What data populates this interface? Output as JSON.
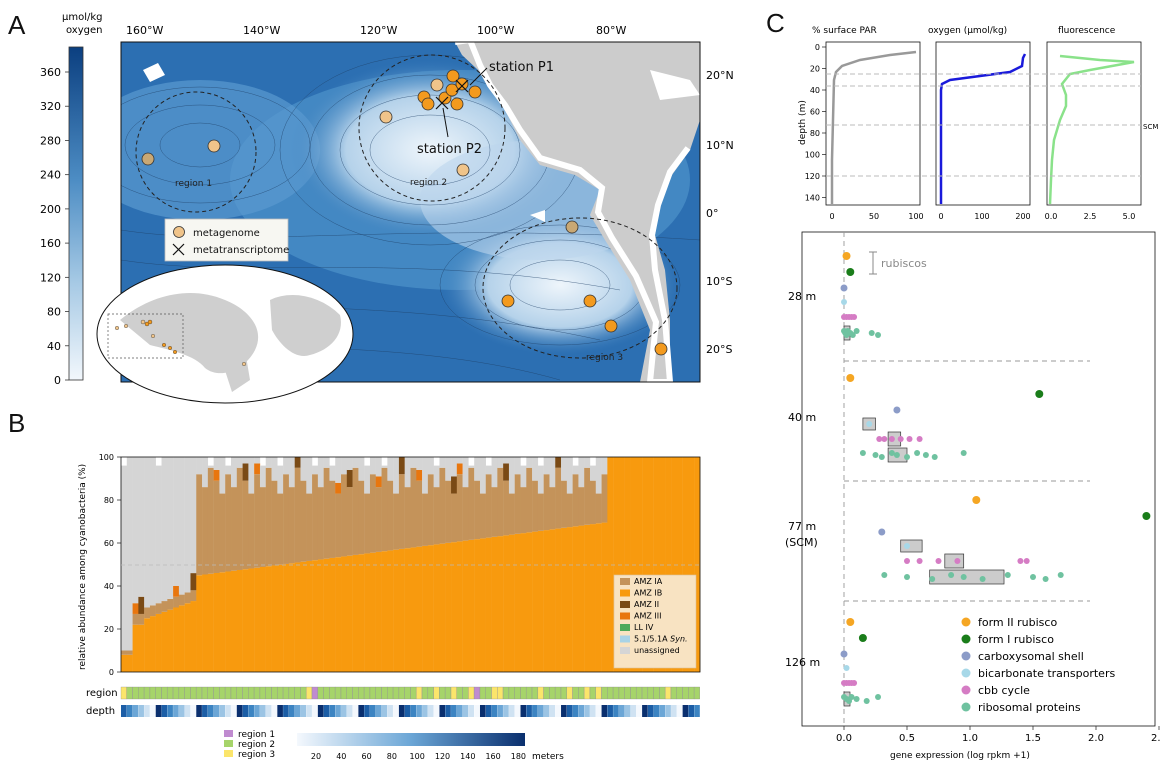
{
  "panels": {
    "a": "A",
    "b": "B",
    "c": "C"
  },
  "map": {
    "colorbar_title_line1": "μmol/kg",
    "colorbar_title_line2": "oxygen",
    "colorbar_ticks": [
      "0",
      "40",
      "80",
      "120",
      "160",
      "200",
      "240",
      "280",
      "320",
      "360"
    ],
    "lon_labels": [
      "160°W",
      "140°W",
      "120°W",
      "100°W",
      "80°W"
    ],
    "lat_labels": [
      "20°N",
      "10°N",
      "0°",
      "10°S",
      "20°S"
    ],
    "region_labels": [
      "region 1",
      "region 2",
      "region 3"
    ],
    "station_labels": [
      "station P1",
      "station P2"
    ],
    "legend": {
      "metagenome": "metagenome",
      "metatranscriptome": "metatranscriptome"
    },
    "colors": {
      "low_oxygen": "#e8f1fa",
      "high_oxygen": "#1f67ac",
      "land": "#cccccc",
      "metagenome": "#f0b878",
      "metatranscriptome_station": "#f39a1e"
    }
  },
  "barchart": {
    "ylabel": "relative abundance among cyanobacteria (%)",
    "yticks": [
      "0",
      "20",
      "40",
      "60",
      "80",
      "100"
    ],
    "legend": [
      {
        "label": "AMZ IA",
        "color": "#c4935a"
      },
      {
        "label": "AMZ IB",
        "color": "#f89a0e"
      },
      {
        "label": "AMZ II",
        "color": "#7a4a15"
      },
      {
        "label": "AMZ III",
        "color": "#e8760e"
      },
      {
        "label": "LL IV",
        "color": "#4daa5b"
      },
      {
        "label": "5.1/5.1A",
        "label_italic": "Syn.",
        "color": "#a8d3e6"
      },
      {
        "label": "unassigned",
        "color": "#d5d5d5"
      }
    ],
    "track_labels": [
      "region",
      "depth"
    ],
    "region_legend": [
      {
        "label": "region 1",
        "color": "#c08bd0"
      },
      {
        "label": "region 2",
        "color": "#a6d46a"
      },
      {
        "label": "region 3",
        "color": "#fbe56b"
      }
    ],
    "depth_ticks": [
      "20",
      "40",
      "60",
      "80",
      "100",
      "120",
      "140",
      "160",
      "180"
    ],
    "depth_unit": "meters"
  },
  "profiles": {
    "titles": [
      "% surface PAR",
      "oxygen (μmol/kg)",
      "fluorescence"
    ],
    "ylabel": "depth (m)",
    "yticks": [
      "0",
      "20",
      "40",
      "60",
      "80",
      "100",
      "120",
      "140"
    ],
    "xticks": [
      [
        "0",
        "50",
        "100"
      ],
      [
        "0",
        "100",
        "200"
      ],
      [
        "0.0",
        "2.5",
        "5.0"
      ]
    ],
    "scm_label": "SCM",
    "colors": [
      "#999999",
      "#1a1adb",
      "#8ae28a"
    ]
  },
  "expression": {
    "depth_labels": [
      "28 m",
      "40 m",
      "77 m",
      "(SCM)",
      "126 m"
    ],
    "bracket_label": "rubiscos",
    "xlabel": "gene expression (log rpkm +1)",
    "xticks": [
      "0.0",
      "0.5",
      "1.0",
      "1.5",
      "2.0",
      "2.5"
    ],
    "legend": [
      {
        "label": "form II rubisco",
        "color": "#f5a623"
      },
      {
        "label": "form I rubisco",
        "color": "#1a7d1a"
      },
      {
        "label": "carboxysomal shell",
        "color": "#8c9cc8"
      },
      {
        "label": "bicarbonate transporters",
        "color": "#a7d8e8"
      },
      {
        "label": "cbb cycle",
        "color": "#d57cc4"
      },
      {
        "label": "ribosomal proteins",
        "color": "#6fc2a0"
      }
    ]
  }
}
